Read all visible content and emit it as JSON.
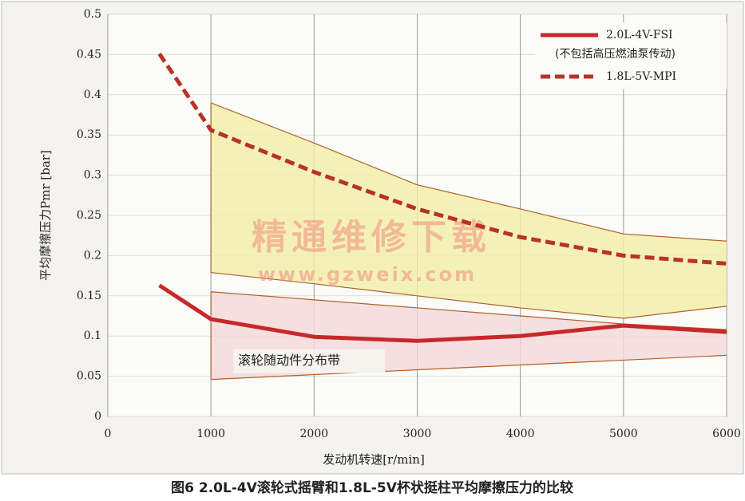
{
  "chart_data": {
    "type": "line",
    "xlabel": "发动机转速[r/min]",
    "ylabel": "平均摩擦压力Pmr [bar]",
    "caption": "图6 2.0L-4V滚轮式摇臂和1.8L-5V杯状挺柱平均摩擦压力的比较",
    "watermark": [
      "精通维修下载",
      "www.gzweix.com"
    ],
    "x": [
      500,
      1000,
      2000,
      3000,
      4000,
      5000,
      6000
    ],
    "series": [
      {
        "name": "2.0L-4V-FSI",
        "note": "(不包括高压燃油泵传动)",
        "color": "#c8282a",
        "style": "solid",
        "values": [
          0.163,
          0.121,
          0.099,
          0.094,
          0.1,
          0.113,
          0.105
        ]
      },
      {
        "name": "1.8L-5V-MPI",
        "color": "#b8322a",
        "style": "dashed",
        "values": [
          0.451,
          0.356,
          0.304,
          0.258,
          0.223,
          0.2,
          0.19
        ]
      }
    ],
    "bands": [
      {
        "color": "#f3efa6",
        "edge": "#b0602a",
        "x": [
          1000,
          2000,
          3000,
          4000,
          5000,
          6000
        ],
        "upper": [
          0.39,
          0.34,
          0.288,
          0.258,
          0.227,
          0.218
        ],
        "lower": [
          0.179,
          0.165,
          0.15,
          0.135,
          0.122,
          0.137
        ]
      },
      {
        "color": "#f5d8d8",
        "edge": "#b0602a",
        "label": "滚轮随动件分布带",
        "x": [
          1000,
          2000,
          3000,
          4000,
          5000,
          6000
        ],
        "upper": [
          0.155,
          0.145,
          0.135,
          0.125,
          0.115,
          0.108
        ],
        "lower": [
          0.046,
          0.052,
          0.058,
          0.064,
          0.07,
          0.076
        ]
      }
    ],
    "xlim": [
      0,
      6000
    ],
    "xticks": [
      0,
      1000,
      2000,
      3000,
      4000,
      5000,
      6000
    ],
    "ylim": [
      0,
      0.5
    ],
    "yticks": [
      0,
      0.05,
      0.1,
      0.15,
      0.2,
      0.25,
      0.3,
      0.35,
      0.4,
      0.45,
      0.5
    ],
    "grid": true
  }
}
